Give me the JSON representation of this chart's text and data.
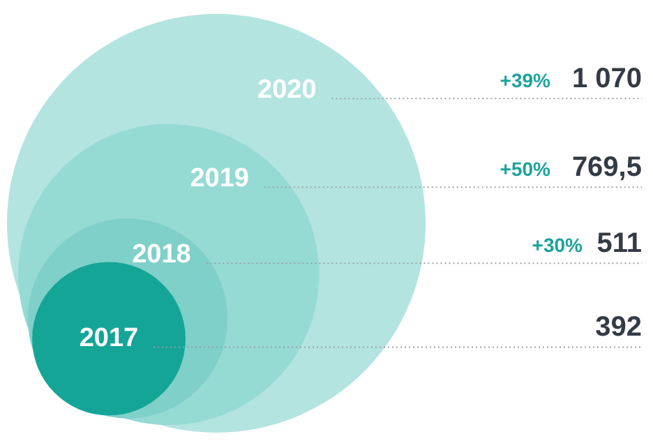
{
  "chart_data": {
    "type": "other",
    "categories": [
      "2017",
      "2018",
      "2019",
      "2020"
    ],
    "values": [
      392,
      511,
      769.5,
      1070
    ],
    "value_labels": [
      "392",
      "511",
      "769,5",
      "1 070"
    ],
    "colors": [
      "#14a597",
      "#7fd0c9",
      "#96dad4",
      "#b3e4e0"
    ],
    "annotations": [
      "+30%",
      "+50%",
      "+39%"
    ]
  }
}
